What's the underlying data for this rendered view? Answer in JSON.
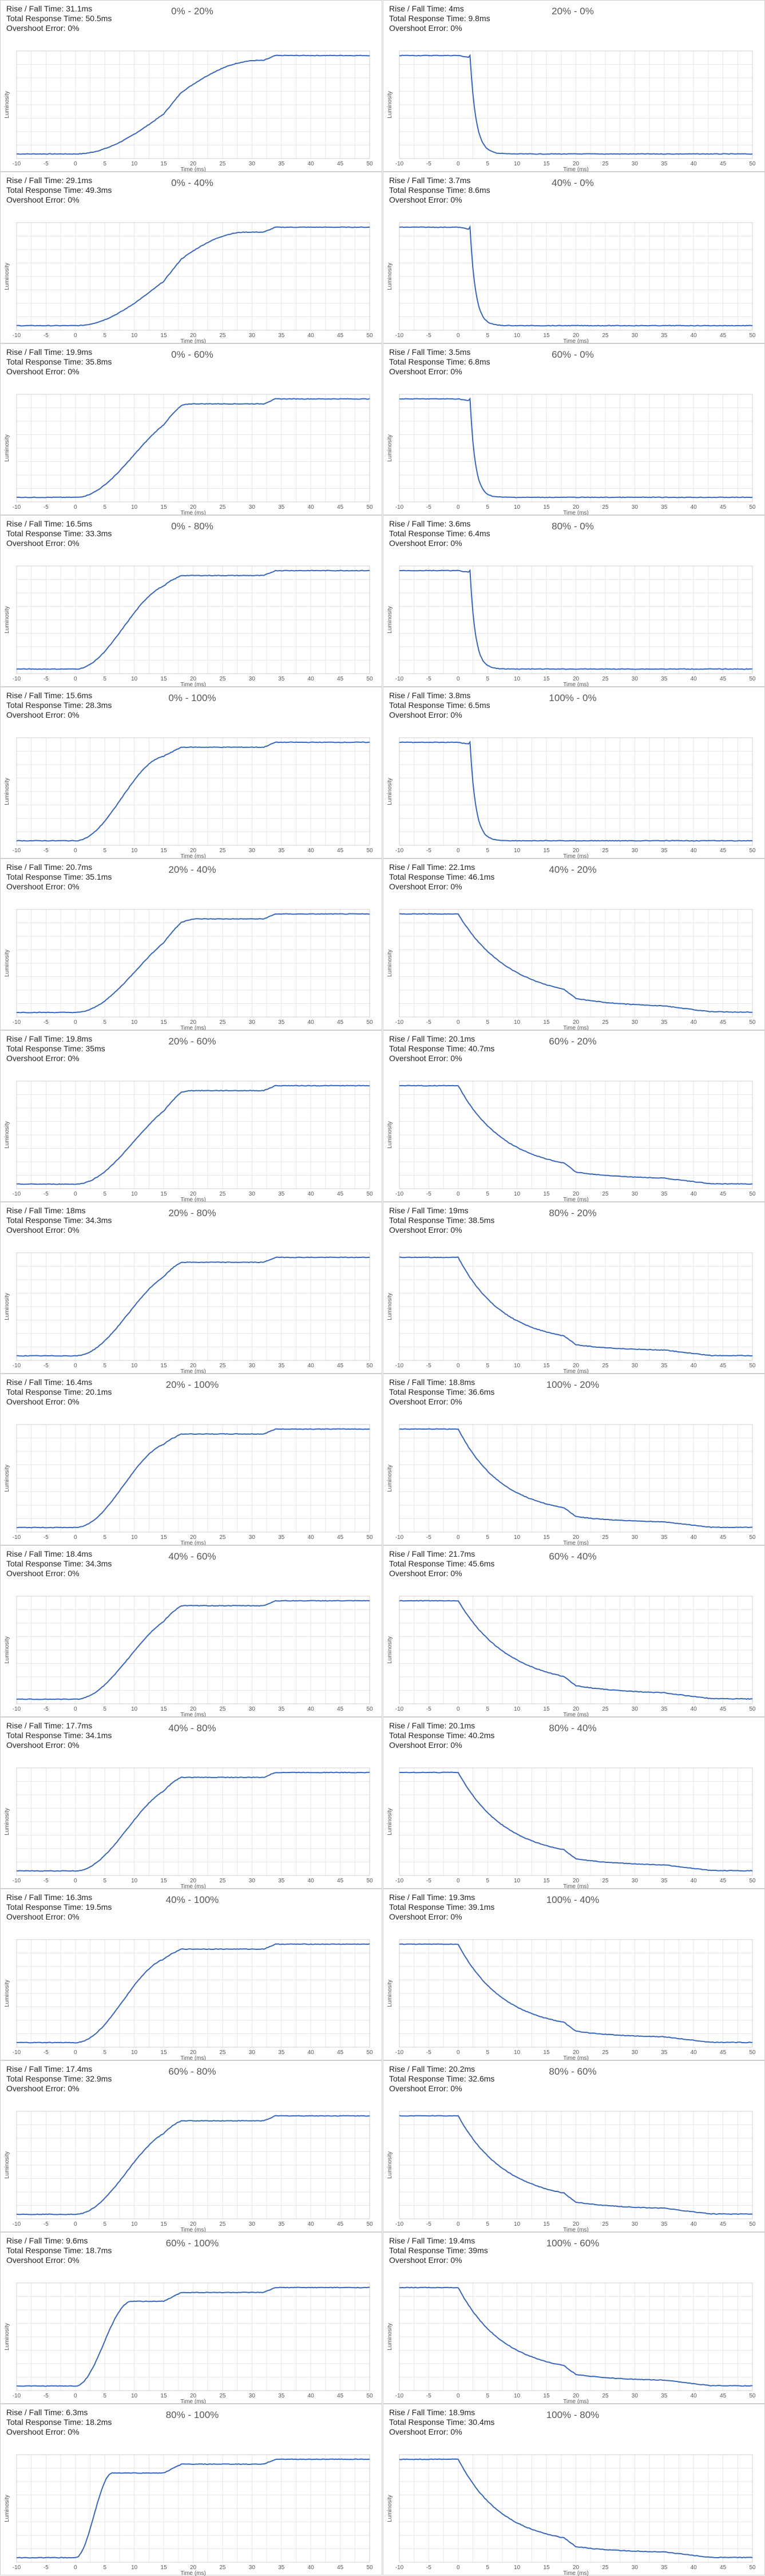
{
  "charts_common": {
    "xlabel": "Time (ms)",
    "ylabel": "Luminosity",
    "xlim": [
      -10,
      50
    ],
    "xticks": [
      -10,
      -5,
      0,
      5,
      10,
      15,
      20,
      25,
      30,
      35,
      40,
      45,
      50
    ],
    "line_color": "#3a66b8",
    "grid": true,
    "stat_labels": {
      "rise_fall": "Rise / Fall Time: ",
      "total": "Total Response Time: ",
      "overshoot": "Overshoot Error: "
    }
  },
  "chart_data": [
    {
      "type": "line",
      "title": "0% - 20%",
      "start": 0,
      "end": 20,
      "rise_fall": "31.1ms",
      "total": "50.5ms",
      "overshoot": "0%"
    },
    {
      "type": "line",
      "title": "20% - 0%",
      "start": 20,
      "end": 0,
      "rise_fall": "4ms",
      "total": "9.8ms",
      "overshoot": "0%"
    },
    {
      "type": "line",
      "title": "0% - 40%",
      "start": 0,
      "end": 40,
      "rise_fall": "29.1ms",
      "total": "49.3ms",
      "overshoot": "0%"
    },
    {
      "type": "line",
      "title": "40% - 0%",
      "start": 40,
      "end": 0,
      "rise_fall": "3.7ms",
      "total": "8.6ms",
      "overshoot": "0%"
    },
    {
      "type": "line",
      "title": "0% - 60%",
      "start": 0,
      "end": 60,
      "rise_fall": "19.9ms",
      "total": "35.8ms",
      "overshoot": "0%"
    },
    {
      "type": "line",
      "title": "60% - 0%",
      "start": 60,
      "end": 0,
      "rise_fall": "3.5ms",
      "total": "6.8ms",
      "overshoot": "0%"
    },
    {
      "type": "line",
      "title": "0% - 80%",
      "start": 0,
      "end": 80,
      "rise_fall": "16.5ms",
      "total": "33.3ms",
      "overshoot": "0%"
    },
    {
      "type": "line",
      "title": "80% - 0%",
      "start": 80,
      "end": 0,
      "rise_fall": "3.6ms",
      "total": "6.4ms",
      "overshoot": "0%"
    },
    {
      "type": "line",
      "title": "0% - 100%",
      "start": 0,
      "end": 100,
      "rise_fall": "15.6ms",
      "total": "28.3ms",
      "overshoot": "0%"
    },
    {
      "type": "line",
      "title": "100% - 0%",
      "start": 100,
      "end": 0,
      "rise_fall": "3.8ms",
      "total": "6.5ms",
      "overshoot": "0%"
    },
    {
      "type": "line",
      "title": "20% - 40%",
      "start": 20,
      "end": 40,
      "rise_fall": "20.7ms",
      "total": "35.1ms",
      "overshoot": "0%"
    },
    {
      "type": "line",
      "title": "40% - 20%",
      "start": 40,
      "end": 20,
      "rise_fall": "22.1ms",
      "total": "46.1ms",
      "overshoot": "0%"
    },
    {
      "type": "line",
      "title": "20% - 60%",
      "start": 20,
      "end": 60,
      "rise_fall": "19.8ms",
      "total": "35ms",
      "overshoot": "0%"
    },
    {
      "type": "line",
      "title": "60% - 20%",
      "start": 60,
      "end": 20,
      "rise_fall": "20.1ms",
      "total": "40.7ms",
      "overshoot": "0%"
    },
    {
      "type": "line",
      "title": "20% - 80%",
      "start": 20,
      "end": 80,
      "rise_fall": "18ms",
      "total": "34.3ms",
      "overshoot": "0%"
    },
    {
      "type": "line",
      "title": "80% - 20%",
      "start": 80,
      "end": 20,
      "rise_fall": "19ms",
      "total": "38.5ms",
      "overshoot": "0%"
    },
    {
      "type": "line",
      "title": "20% - 100%",
      "start": 20,
      "end": 100,
      "rise_fall": "16.4ms",
      "total": "20.1ms",
      "overshoot": "0%"
    },
    {
      "type": "line",
      "title": "100% - 20%",
      "start": 100,
      "end": 20,
      "rise_fall": "18.8ms",
      "total": "36.6ms",
      "overshoot": "0%"
    },
    {
      "type": "line",
      "title": "40% - 60%",
      "start": 40,
      "end": 60,
      "rise_fall": "18.4ms",
      "total": "34.3ms",
      "overshoot": "0%"
    },
    {
      "type": "line",
      "title": "60% - 40%",
      "start": 60,
      "end": 40,
      "rise_fall": "21.7ms",
      "total": "45.6ms",
      "overshoot": "0%"
    },
    {
      "type": "line",
      "title": "40% - 80%",
      "start": 40,
      "end": 80,
      "rise_fall": "17.7ms",
      "total": "34.1ms",
      "overshoot": "0%"
    },
    {
      "type": "line",
      "title": "80% - 40%",
      "start": 80,
      "end": 40,
      "rise_fall": "20.1ms",
      "total": "40.2ms",
      "overshoot": "0%"
    },
    {
      "type": "line",
      "title": "40% - 100%",
      "start": 40,
      "end": 100,
      "rise_fall": "16.3ms",
      "total": "19.5ms",
      "overshoot": "0%"
    },
    {
      "type": "line",
      "title": "100% - 40%",
      "start": 100,
      "end": 40,
      "rise_fall": "19.3ms",
      "total": "39.1ms",
      "overshoot": "0%"
    },
    {
      "type": "line",
      "title": "60% - 80%",
      "start": 60,
      "end": 80,
      "rise_fall": "17.4ms",
      "total": "32.9ms",
      "overshoot": "0%"
    },
    {
      "type": "line",
      "title": "80% - 60%",
      "start": 80,
      "end": 60,
      "rise_fall": "20.2ms",
      "total": "32.6ms",
      "overshoot": "0%"
    },
    {
      "type": "line",
      "title": "60% - 100%",
      "start": 60,
      "end": 100,
      "rise_fall": "9.6ms",
      "total": "18.7ms",
      "overshoot": "0%"
    },
    {
      "type": "line",
      "title": "100% - 60%",
      "start": 100,
      "end": 60,
      "rise_fall": "19.4ms",
      "total": "39ms",
      "overshoot": "0%"
    },
    {
      "type": "line",
      "title": "80% - 100%",
      "start": 80,
      "end": 100,
      "rise_fall": "6.3ms",
      "total": "18.2ms",
      "overshoot": "0%"
    },
    {
      "type": "line",
      "title": "100% - 80%",
      "start": 100,
      "end": 80,
      "rise_fall": "18.9ms",
      "total": "30.4ms",
      "overshoot": "0%"
    }
  ]
}
